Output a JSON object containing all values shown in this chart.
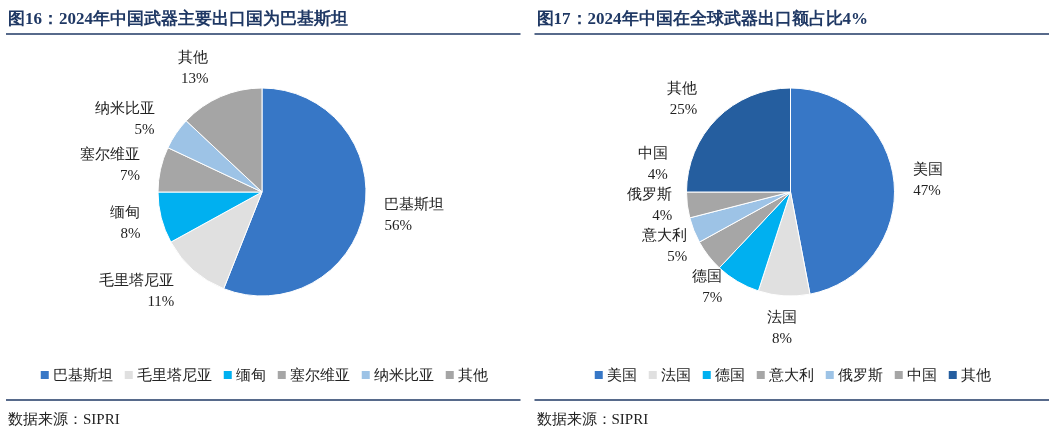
{
  "chart_data": [
    {
      "type": "pie",
      "title": "图16：2024年中国武器主要出口国为巴基斯坦",
      "categories": [
        "巴基斯坦",
        "毛里塔尼亚",
        "缅甸",
        "塞尔维亚",
        "纳米比亚",
        "其他"
      ],
      "values": [
        56,
        11,
        8,
        7,
        5,
        13
      ],
      "colors": [
        "#3777c6",
        "#e0e0e0",
        "#00b0f0",
        "#a6a6a6",
        "#9dc3e6",
        "#a5a5a5"
      ],
      "value_labels": [
        "56%",
        "11%",
        "8%",
        "7%",
        "5%",
        "13%"
      ],
      "legend": "bottom",
      "annotations": [
        "数据来源：SIPRI"
      ]
    },
    {
      "type": "pie",
      "title": "图17：2024年中国在全球武器出口额占比4%",
      "categories": [
        "美国",
        "法国",
        "德国",
        "意大利",
        "俄罗斯",
        "中国",
        "其他"
      ],
      "values": [
        47,
        8,
        7,
        5,
        4,
        4,
        25
      ],
      "colors": [
        "#3777c6",
        "#e0e0e0",
        "#00b0f0",
        "#a6a6a6",
        "#9dc3e6",
        "#a6a6a6",
        "#255e9f"
      ],
      "value_labels": [
        "47%",
        "8%",
        "7%",
        "5%",
        "4%",
        "4%",
        "25%"
      ],
      "legend": "bottom",
      "annotations": [
        "数据来源：SIPRI"
      ]
    }
  ]
}
